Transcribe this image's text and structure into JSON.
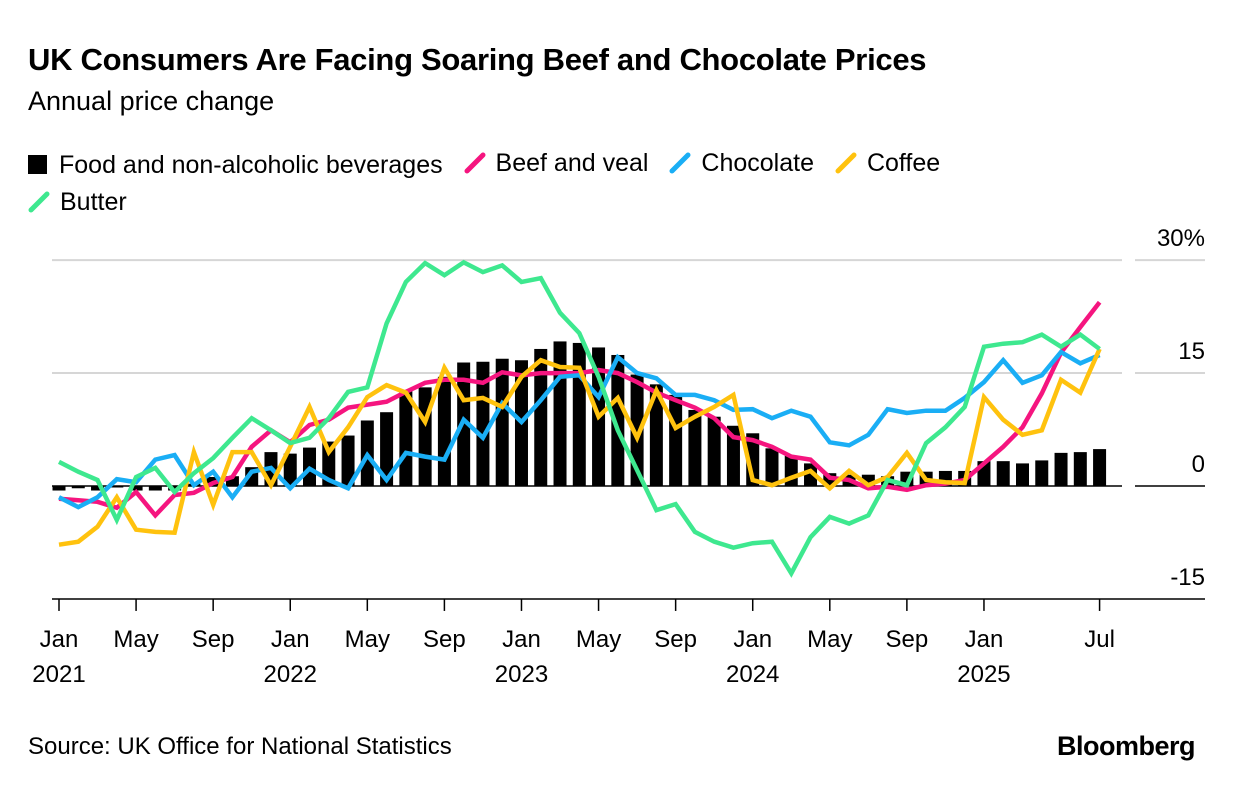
{
  "chart_data": {
    "type": "bar+line",
    "title": "UK Consumers Are Facing Soaring Beef and Chocolate Prices",
    "subtitle": "Annual price change",
    "source": "Source: UK Office for National Statistics",
    "brand": "Bloomberg",
    "x_start": "2021-01",
    "x_end": "2025-07",
    "x_ticks": [
      {
        "index": 0,
        "label": "Jan",
        "year": "2021"
      },
      {
        "index": 4,
        "label": "May",
        "year": ""
      },
      {
        "index": 8,
        "label": "Sep",
        "year": ""
      },
      {
        "index": 12,
        "label": "Jan",
        "year": "2022"
      },
      {
        "index": 16,
        "label": "May",
        "year": ""
      },
      {
        "index": 20,
        "label": "Sep",
        "year": ""
      },
      {
        "index": 24,
        "label": "Jan",
        "year": "2023"
      },
      {
        "index": 28,
        "label": "May",
        "year": ""
      },
      {
        "index": 32,
        "label": "Sep",
        "year": ""
      },
      {
        "index": 36,
        "label": "Jan",
        "year": "2024"
      },
      {
        "index": 40,
        "label": "May",
        "year": ""
      },
      {
        "index": 44,
        "label": "Sep",
        "year": ""
      },
      {
        "index": 48,
        "label": "Jan",
        "year": "2025"
      },
      {
        "index": 54,
        "label": "Jul",
        "year": ""
      }
    ],
    "y_ticks": [
      {
        "value": 30,
        "label": "30%"
      },
      {
        "value": 15,
        "label": "15"
      },
      {
        "value": 0,
        "label": "0"
      },
      {
        "value": -15,
        "label": "-15"
      }
    ],
    "ylim": [
      -15,
      30
    ],
    "grid": true,
    "legend_position": "top-left",
    "series": [
      {
        "name": "Food and non-alcoholic beverages",
        "kind": "bar",
        "color": "#000000",
        "values": [
          -0.6,
          -0.3,
          -0.6,
          -0.2,
          -0.6,
          -0.6,
          -0.6,
          0.3,
          1.2,
          1.3,
          2.5,
          4.5,
          4.3,
          5.1,
          5.9,
          6.7,
          8.7,
          9.8,
          12.7,
          13.1,
          14.5,
          16.4,
          16.5,
          16.9,
          16.7,
          18.2,
          19.2,
          19.0,
          18.4,
          17.4,
          14.8,
          13.5,
          12.1,
          10.1,
          9.2,
          8.0,
          7.0,
          5.0,
          4.0,
          3.0,
          1.7,
          1.5,
          1.5,
          1.3,
          1.9,
          1.9,
          2.0,
          2.0,
          3.3,
          3.3,
          3.0,
          3.4,
          4.4,
          4.5,
          4.9
        ]
      },
      {
        "name": "Beef and veal",
        "kind": "line",
        "color": "#f5157f",
        "values": [
          -1.7,
          -1.9,
          -2.1,
          -2.9,
          -0.8,
          -3.9,
          -1.2,
          -0.9,
          0.4,
          1.2,
          5.2,
          7.4,
          5.8,
          8.1,
          8.8,
          10.4,
          10.8,
          11.2,
          12.5,
          13.7,
          14.1,
          14.1,
          13.7,
          15.1,
          14.7,
          15.0,
          15.0,
          15.0,
          15.4,
          15.0,
          13.8,
          12.4,
          11.4,
          10.4,
          9.0,
          6.5,
          6.1,
          5.2,
          3.9,
          3.5,
          1.1,
          0.8,
          -0.3,
          -0.1,
          -0.5,
          0.1,
          0.3,
          0.8,
          3.0,
          5.2,
          7.8,
          12.3,
          17.7,
          21.1,
          24.4
        ]
      },
      {
        "name": "Chocolate",
        "kind": "line",
        "color": "#1aaef5",
        "values": [
          -1.5,
          -2.8,
          -1.5,
          0.9,
          0.5,
          3.5,
          4.1,
          0.1,
          1.9,
          -1.5,
          1.9,
          2.4,
          -0.3,
          2.3,
          0.8,
          -0.3,
          4.1,
          0.8,
          4.4,
          3.9,
          3.5,
          8.8,
          6.4,
          11.0,
          8.5,
          11.4,
          14.5,
          14.7,
          11.8,
          17.1,
          15.0,
          14.3,
          12.1,
          12.1,
          11.4,
          10.1,
          10.2,
          9.0,
          10.0,
          9.2,
          5.8,
          5.4,
          6.8,
          10.2,
          9.7,
          10.0,
          10.0,
          11.7,
          13.8,
          16.7,
          13.7,
          14.7,
          17.8,
          16.3,
          17.4
        ]
      },
      {
        "name": "Coffee",
        "kind": "line",
        "color": "#ffc20e",
        "values": [
          -7.8,
          -7.4,
          -5.4,
          -1.5,
          -5.8,
          -6.1,
          -6.2,
          4.5,
          -2.5,
          4.5,
          4.5,
          0.1,
          5.2,
          10.5,
          4.5,
          7.8,
          11.8,
          13.4,
          12.4,
          8.5,
          15.7,
          11.4,
          11.7,
          10.5,
          14.5,
          16.7,
          15.8,
          15.7,
          9.2,
          11.7,
          6.4,
          12.7,
          7.7,
          9.2,
          10.5,
          12.1,
          0.8,
          0.1,
          1.1,
          2.0,
          -0.3,
          2.0,
          0.1,
          1.2,
          4.4,
          0.8,
          0.5,
          0.4,
          11.8,
          8.8,
          6.8,
          7.4,
          14.1,
          12.4,
          18.2
        ]
      },
      {
        "name": "Butter",
        "kind": "line",
        "color": "#3ee88f",
        "values": [
          3.2,
          1.9,
          0.8,
          -4.5,
          1.2,
          2.4,
          -0.8,
          1.7,
          3.7,
          6.4,
          9.0,
          7.4,
          5.7,
          6.4,
          9.0,
          12.5,
          13.1,
          21.6,
          27.1,
          29.6,
          28.0,
          29.7,
          28.4,
          29.3,
          27.1,
          27.6,
          23.0,
          20.3,
          14.5,
          7.4,
          2.1,
          -3.2,
          -2.4,
          -6.1,
          -7.4,
          -8.2,
          -7.6,
          -7.4,
          -11.6,
          -6.8,
          -4.1,
          -5.0,
          -3.9,
          0.8,
          0.1,
          5.7,
          7.8,
          10.5,
          18.5,
          18.9,
          19.1,
          20.1,
          18.5,
          20.1,
          18.2
        ]
      }
    ]
  }
}
